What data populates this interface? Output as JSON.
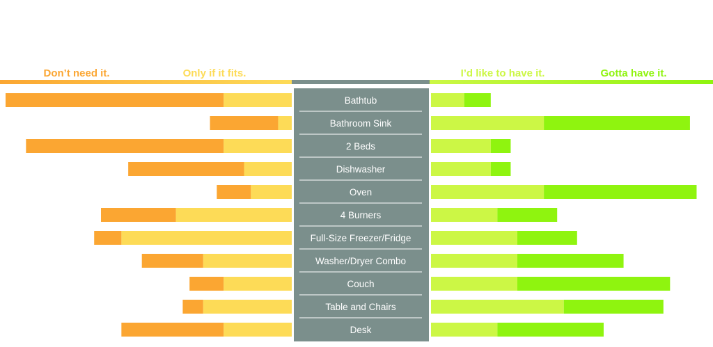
{
  "colors": {
    "dont_need": "#FBA632",
    "only_if_fits": "#FDDB57",
    "like_to_have": "#CCF745",
    "gotta_have": "#8FF40F",
    "center_panel": "#7B8F8C",
    "divider": "#FFFFFF"
  },
  "chart_data": {
    "type": "bar",
    "layout": "diverging-stacked-horizontal",
    "title": "",
    "xlabel": "",
    "ylabel": "",
    "legend_placement": "top",
    "grid": false,
    "categories": [
      "Bathtub",
      "Bathroom Sink",
      "2 Beds",
      "Dishwasher",
      "Oven",
      "4 Burners",
      "Full-Size Freezer/Fridge",
      "Washer/Dryer Combo",
      "Couch",
      "Table and Chairs",
      "Desk"
    ],
    "left_xlim": [
      0,
      42
    ],
    "right_xlim": [
      0,
      41
    ],
    "series": [
      {
        "name": "Don’t need it.",
        "side": "left",
        "key": "dont_need",
        "values": [
          32,
          10,
          29,
          17,
          5,
          11,
          4,
          9,
          5,
          3,
          15
        ]
      },
      {
        "name": "Only if it fits.",
        "side": "left",
        "key": "only_if_fits",
        "values": [
          10,
          2,
          10,
          7,
          6,
          17,
          25,
          13,
          10,
          13,
          10
        ]
      },
      {
        "name": "I’d like to have it.",
        "side": "right",
        "key": "like_to_have",
        "values": [
          5,
          17,
          9,
          9,
          17,
          10,
          13,
          13,
          13,
          20,
          10
        ]
      },
      {
        "name": "Gotta have it.",
        "side": "right",
        "key": "gotta_have",
        "values": [
          4,
          22,
          3,
          3,
          23,
          9,
          9,
          16,
          23,
          15,
          16
        ]
      }
    ]
  }
}
